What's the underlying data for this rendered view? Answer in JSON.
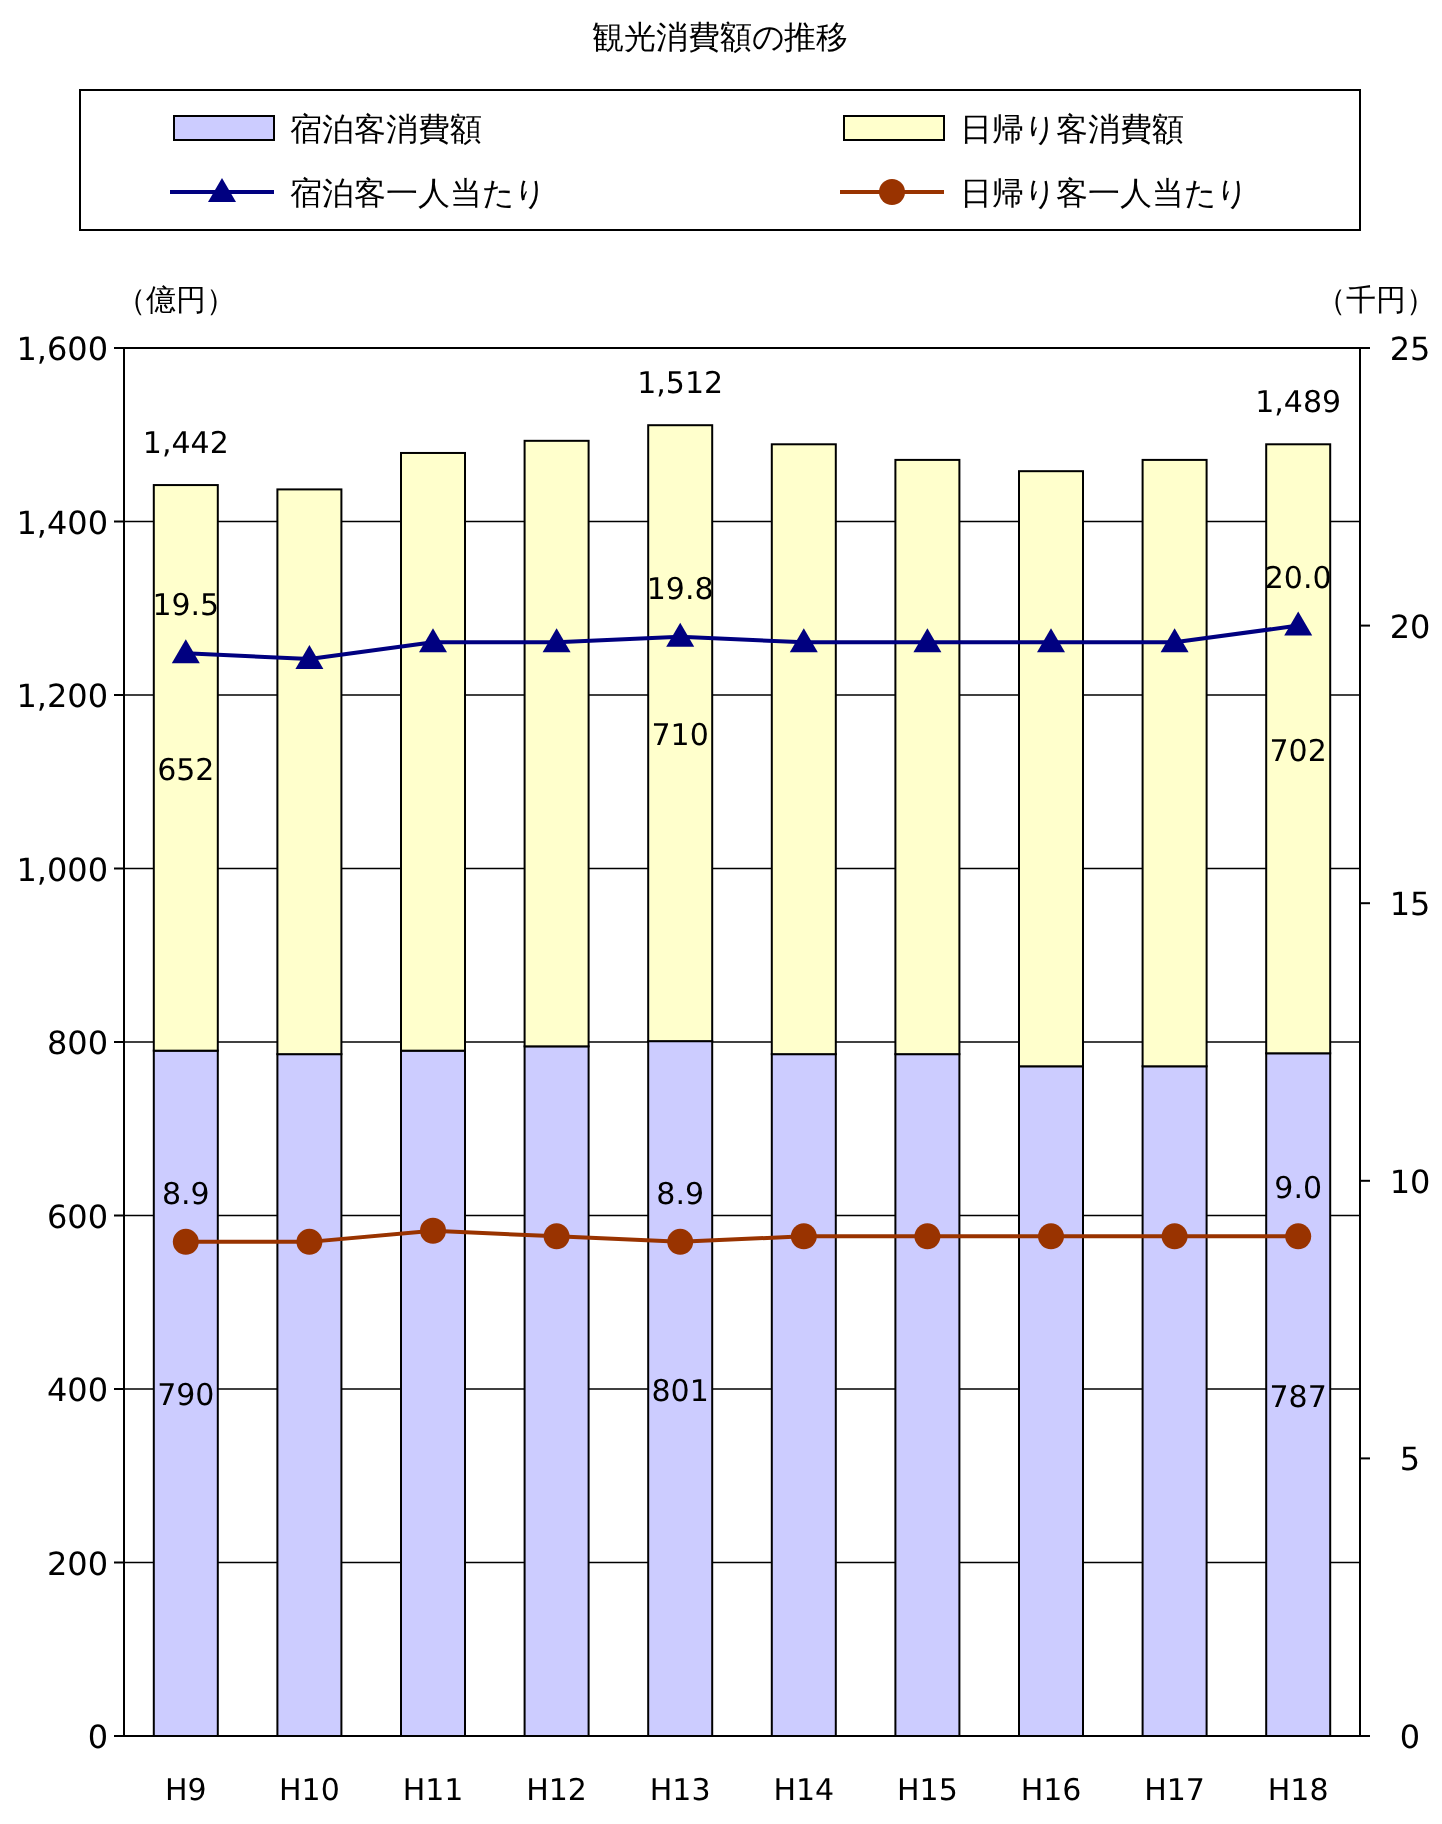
{
  "chart_data": {
    "type": "bar",
    "title": "観光消費額の推移",
    "ylabel": "（億円）",
    "y2label": "（千円）",
    "stacked": true,
    "grid": "y",
    "legend": "top",
    "categories": [
      "H9",
      "H10",
      "H11",
      "H12",
      "H13",
      "H14",
      "H15",
      "H16",
      "H17",
      "H18"
    ],
    "ylim": [
      0,
      1600
    ],
    "yticks": [
      0,
      200,
      400,
      600,
      800,
      {
        "value": 1000,
        "label": "1,000"
      },
      {
        "value": 1200,
        "label": "1,200"
      },
      {
        "value": 1400,
        "label": "1,400"
      },
      {
        "value": 1600,
        "label": "1,600"
      }
    ],
    "y2lim": [
      0,
      25
    ],
    "y2ticks": [
      0,
      5,
      10,
      15,
      20,
      25
    ],
    "series": [
      {
        "name": "宿泊客消費額",
        "color": "#ccccff",
        "values": [
          790,
          786,
          790,
          795,
          801,
          786,
          786,
          772,
          772,
          787
        ],
        "value_labels": [
          "790",
          null,
          null,
          null,
          "801",
          null,
          null,
          null,
          null,
          "787"
        ]
      },
      {
        "name": "日帰り客消費額",
        "color": "#ffffcc",
        "values": [
          652,
          651,
          689,
          698,
          710,
          703,
          685,
          686,
          699,
          702
        ],
        "value_labels": [
          "652",
          null,
          null,
          null,
          "710",
          null,
          null,
          null,
          null,
          "702"
        ]
      },
      {
        "name": "宿泊客一人当たり",
        "type": "line",
        "axis": "y2",
        "marker": "triangle",
        "color": "#000080",
        "values": [
          19.5,
          19.4,
          19.7,
          19.7,
          19.8,
          19.7,
          19.7,
          19.7,
          19.7,
          20.0
        ],
        "value_labels": [
          "19.5",
          null,
          null,
          null,
          "19.8",
          null,
          null,
          null,
          null,
          "20.0"
        ]
      },
      {
        "name": "日帰り客一人当たり",
        "type": "line",
        "axis": "y2",
        "marker": "circle",
        "color": "#993300",
        "values": [
          8.9,
          8.9,
          9.1,
          9.0,
          8.9,
          9.0,
          9.0,
          9.0,
          9.0,
          9.0
        ],
        "value_labels": [
          "8.9",
          null,
          null,
          null,
          "8.9",
          null,
          null,
          null,
          null,
          "9.0"
        ]
      }
    ],
    "totals": [
      "1,442",
      null,
      null,
      null,
      "1,512",
      null,
      null,
      null,
      null,
      "1,489"
    ]
  }
}
